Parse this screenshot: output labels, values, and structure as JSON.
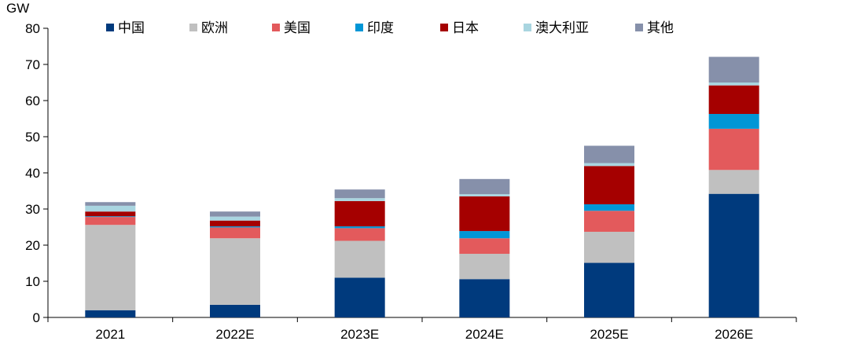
{
  "chart_data": {
    "type": "bar",
    "stacked": true,
    "unit_label": "GW",
    "title": "",
    "xlabel": "",
    "ylabel": "GW",
    "ylim": [
      0,
      80
    ],
    "yticks": [
      0,
      10,
      20,
      30,
      40,
      50,
      60,
      70,
      80
    ],
    "grid": false,
    "legend_position": "top",
    "categories": [
      "2021",
      "2022E",
      "2023E",
      "2024E",
      "2025E",
      "2026E"
    ],
    "series": [
      {
        "name": "中国",
        "color": "#003a7d",
        "values": [
          2.0,
          3.5,
          11.0,
          10.6,
          15.1,
          34.2
        ]
      },
      {
        "name": "欧洲",
        "color": "#c0c0c0",
        "values": [
          23.6,
          18.4,
          10.2,
          7.0,
          8.6,
          6.6
        ]
      },
      {
        "name": "美国",
        "color": "#e35a5c",
        "values": [
          2.2,
          3.0,
          3.5,
          4.3,
          5.8,
          11.4
        ]
      },
      {
        "name": "印度",
        "color": "#0096d6",
        "values": [
          0.2,
          0.3,
          0.5,
          2.0,
          1.8,
          4.1
        ]
      },
      {
        "name": "日本",
        "color": "#a50000",
        "values": [
          1.3,
          1.6,
          7.0,
          9.6,
          10.6,
          7.9
        ]
      },
      {
        "name": "澳大利亚",
        "color": "#a9d5e0",
        "values": [
          1.6,
          1.1,
          0.8,
          0.6,
          0.8,
          0.8
        ]
      },
      {
        "name": "其他",
        "color": "#8690aa",
        "values": [
          1.0,
          1.4,
          2.4,
          4.2,
          4.8,
          7.1
        ]
      }
    ]
  }
}
